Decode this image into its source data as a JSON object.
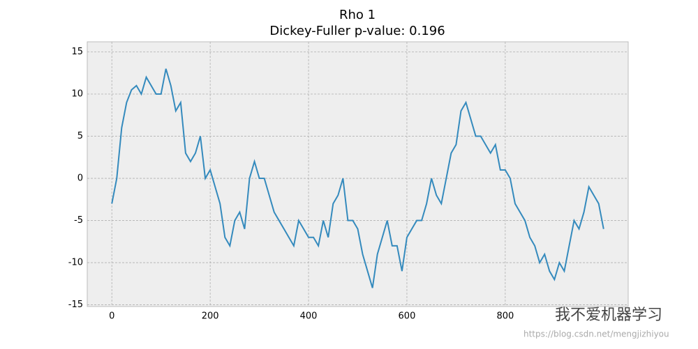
{
  "chart_data": {
    "type": "line",
    "title": "Rho 1",
    "subtitle": "Dickey-Fuller p-value: 0.196",
    "x": [
      0,
      10,
      20,
      30,
      40,
      50,
      60,
      70,
      80,
      90,
      100,
      110,
      120,
      130,
      140,
      150,
      160,
      170,
      180,
      190,
      200,
      210,
      220,
      230,
      240,
      250,
      260,
      270,
      280,
      290,
      300,
      310,
      320,
      330,
      340,
      350,
      360,
      370,
      380,
      390,
      400,
      410,
      420,
      430,
      440,
      450,
      460,
      470,
      480,
      490,
      500,
      510,
      520,
      530,
      540,
      550,
      560,
      570,
      580,
      590,
      600,
      610,
      620,
      630,
      640,
      650,
      660,
      670,
      680,
      690,
      700,
      710,
      720,
      730,
      740,
      750,
      760,
      770,
      780,
      790,
      800,
      810,
      820,
      830,
      840,
      850,
      860,
      870,
      880,
      890,
      900,
      910,
      920,
      930,
      940,
      950,
      960,
      970,
      980,
      990,
      1000
    ],
    "series": [
      {
        "color": "#348ABD",
        "values": [
          -3,
          0,
          6,
          9,
          10.5,
          11,
          10,
          12,
          11,
          10,
          10,
          13,
          11,
          8,
          9,
          3,
          2,
          3,
          5,
          0,
          1,
          -1,
          -3,
          -7,
          -8,
          -5,
          -4,
          -6,
          0,
          2,
          0,
          0,
          -2,
          -4,
          -5,
          -6,
          -7,
          -8,
          -5,
          -6,
          -7,
          -7,
          -8,
          -5,
          -7,
          -3,
          -2,
          0,
          -5,
          -5,
          -6,
          -9,
          -11,
          -13,
          -9,
          -7,
          -5,
          -8,
          -8,
          -11,
          -7,
          -6,
          -5,
          -5,
          -3,
          0,
          -2,
          -3,
          0,
          3,
          4,
          8,
          9,
          7,
          5,
          5,
          4,
          3,
          4,
          1,
          1,
          0,
          -3,
          -4,
          -5,
          -7,
          -8,
          -10,
          -9,
          -11,
          -12,
          -10,
          -11,
          -8,
          -5,
          -6,
          -4,
          -1,
          -2,
          -3,
          -6
        ]
      }
    ],
    "xlim": [
      -50,
      1050
    ],
    "ylim": [
      -15.2,
      16.2
    ],
    "xticks": [
      0,
      200,
      400,
      600,
      800
    ],
    "yticks": [
      -15,
      -10,
      -5,
      0,
      5,
      10,
      15
    ],
    "grid": true,
    "watermark": "我不爱机器学习",
    "watermark_url": "https://blog.csdn.net/mengjizhiyou"
  }
}
